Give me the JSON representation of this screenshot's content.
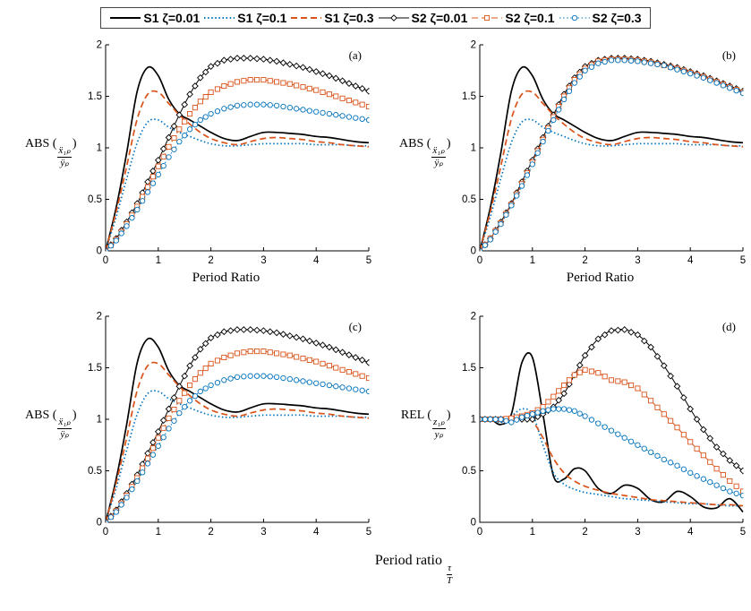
{
  "legend": {
    "items": [
      {
        "label": "S1 ζ=0.01",
        "color": "#000000",
        "dash": "solid",
        "marker": "none"
      },
      {
        "label": "S1 ζ=0.1",
        "color": "#0072BD",
        "dash": "dotted",
        "marker": "none"
      },
      {
        "label": "S1 ζ=0.3",
        "color": "#D95319",
        "dash": "dashed",
        "marker": "none"
      },
      {
        "label": "S2 ζ=0.01",
        "color": "#000000",
        "dash": "solid",
        "marker": "diamond"
      },
      {
        "label": "S2 ζ=0.1",
        "color": "#D95319",
        "dash": "dashed",
        "marker": "square"
      },
      {
        "label": "S2 ζ=0.3",
        "color": "#0072BD",
        "dash": "dotted",
        "marker": "circle"
      }
    ]
  },
  "labels": {
    "bottom_xlabel": "Period ratio",
    "tau": "τ",
    "T": "T"
  },
  "chart_data": [
    {
      "type": "line",
      "subplot": "(a)",
      "xlabel": "Period Ratio",
      "ylabel_prefix": "ABS (",
      "frac_num": "ẍ₁ₚ",
      "frac_den": "ÿₚ",
      "ylabel_suffix": ")",
      "xlim": [
        0,
        5
      ],
      "ylim": [
        0,
        2
      ],
      "xticks": [
        0,
        1,
        2,
        3,
        4,
        5
      ],
      "yticks": [
        0,
        0.5,
        1,
        1.5,
        2
      ],
      "x": [
        0,
        0.2,
        0.4,
        0.6,
        0.8,
        1,
        1.2,
        1.4,
        1.6,
        1.8,
        2,
        2.25,
        2.5,
        2.75,
        3,
        3.25,
        3.5,
        3.75,
        4,
        4.25,
        4.5,
        4.75,
        5
      ],
      "series": [
        {
          "name": "S1 ζ=0.01",
          "values": [
            0,
            0.42,
            0.95,
            1.55,
            1.78,
            1.7,
            1.47,
            1.33,
            1.27,
            1.21,
            1.15,
            1.09,
            1.07,
            1.11,
            1.15,
            1.15,
            1.14,
            1.13,
            1.11,
            1.1,
            1.08,
            1.06,
            1.05
          ]
        },
        {
          "name": "S1 ζ=0.1",
          "values": [
            0,
            0.33,
            0.7,
            1.05,
            1.25,
            1.27,
            1.2,
            1.15,
            1.11,
            1.07,
            1.04,
            1.02,
            1.02,
            1.03,
            1.04,
            1.04,
            1.04,
            1.04,
            1.03,
            1.03,
            1.03,
            1.02,
            1.02
          ]
        },
        {
          "name": "S1 ζ=0.3",
          "values": [
            0,
            0.38,
            0.82,
            1.28,
            1.52,
            1.54,
            1.43,
            1.32,
            1.23,
            1.15,
            1.09,
            1.05,
            1.03,
            1.06,
            1.09,
            1.1,
            1.09,
            1.08,
            1.06,
            1.05,
            1.03,
            1.02,
            1.01
          ]
        },
        {
          "name": "S2 ζ=0.01",
          "values": [
            0,
            0.12,
            0.28,
            0.46,
            0.67,
            0.88,
            1.1,
            1.32,
            1.52,
            1.68,
            1.79,
            1.85,
            1.87,
            1.87,
            1.86,
            1.84,
            1.81,
            1.78,
            1.74,
            1.7,
            1.65,
            1.6,
            1.55
          ]
        },
        {
          "name": "S2 ζ=0.1",
          "values": [
            0,
            0.11,
            0.26,
            0.43,
            0.62,
            0.82,
            1.01,
            1.18,
            1.33,
            1.45,
            1.54,
            1.6,
            1.64,
            1.66,
            1.66,
            1.64,
            1.62,
            1.59,
            1.56,
            1.52,
            1.48,
            1.44,
            1.4
          ]
        },
        {
          "name": "S2 ζ=0.3",
          "values": [
            0,
            0.1,
            0.24,
            0.4,
            0.57,
            0.74,
            0.91,
            1.06,
            1.18,
            1.27,
            1.33,
            1.38,
            1.41,
            1.42,
            1.42,
            1.41,
            1.39,
            1.37,
            1.35,
            1.33,
            1.31,
            1.29,
            1.27
          ]
        }
      ]
    },
    {
      "type": "line",
      "subplot": "(b)",
      "xlabel": "Period Ratio",
      "ylabel_prefix": "ABS (",
      "frac_num": "ẍ₁ₚ",
      "frac_den": "ÿₚ",
      "ylabel_suffix": ")",
      "xlim": [
        0,
        5
      ],
      "ylim": [
        0,
        2
      ],
      "xticks": [
        0,
        1,
        2,
        3,
        4,
        5
      ],
      "yticks": [
        0,
        0.5,
        1,
        1.5,
        2
      ],
      "x": [
        0,
        0.2,
        0.4,
        0.6,
        0.8,
        1,
        1.2,
        1.4,
        1.6,
        1.8,
        2,
        2.25,
        2.5,
        2.75,
        3,
        3.25,
        3.5,
        3.75,
        4,
        4.25,
        4.5,
        4.75,
        5
      ],
      "series": [
        {
          "name": "S1 ζ=0.01",
          "values": [
            0,
            0.42,
            0.95,
            1.55,
            1.78,
            1.7,
            1.47,
            1.33,
            1.27,
            1.21,
            1.15,
            1.09,
            1.07,
            1.11,
            1.15,
            1.15,
            1.14,
            1.13,
            1.11,
            1.1,
            1.08,
            1.06,
            1.05
          ]
        },
        {
          "name": "S1 ζ=0.1",
          "values": [
            0,
            0.33,
            0.7,
            1.05,
            1.25,
            1.27,
            1.2,
            1.15,
            1.11,
            1.07,
            1.04,
            1.02,
            1.02,
            1.03,
            1.04,
            1.04,
            1.04,
            1.04,
            1.03,
            1.03,
            1.03,
            1.02,
            1.02
          ]
        },
        {
          "name": "S1 ζ=0.3",
          "values": [
            0,
            0.38,
            0.82,
            1.28,
            1.52,
            1.54,
            1.43,
            1.32,
            1.23,
            1.15,
            1.09,
            1.05,
            1.03,
            1.06,
            1.09,
            1.1,
            1.09,
            1.08,
            1.06,
            1.05,
            1.03,
            1.02,
            1.01
          ]
        },
        {
          "name": "S2 ζ=0.01",
          "values": [
            0,
            0.12,
            0.28,
            0.46,
            0.67,
            0.88,
            1.1,
            1.32,
            1.52,
            1.68,
            1.79,
            1.85,
            1.87,
            1.87,
            1.86,
            1.84,
            1.81,
            1.78,
            1.74,
            1.7,
            1.65,
            1.6,
            1.55
          ]
        },
        {
          "name": "S2 ζ=0.1",
          "values": [
            0,
            0.12,
            0.27,
            0.45,
            0.65,
            0.86,
            1.08,
            1.3,
            1.5,
            1.66,
            1.77,
            1.84,
            1.86,
            1.86,
            1.85,
            1.83,
            1.8,
            1.77,
            1.73,
            1.69,
            1.64,
            1.59,
            1.54
          ]
        },
        {
          "name": "S2 ζ=0.3",
          "values": [
            0,
            0.11,
            0.26,
            0.44,
            0.63,
            0.84,
            1.06,
            1.27,
            1.47,
            1.63,
            1.75,
            1.82,
            1.85,
            1.85,
            1.84,
            1.82,
            1.8,
            1.76,
            1.72,
            1.68,
            1.63,
            1.58,
            1.53
          ]
        }
      ]
    },
    {
      "type": "line",
      "subplot": "(c)",
      "ylabel_prefix": "ABS (",
      "frac_num": "ẍ₁ₚ",
      "frac_den": "ÿₚ",
      "ylabel_suffix": ")",
      "xlim": [
        0,
        5
      ],
      "ylim": [
        0,
        2
      ],
      "xticks": [
        0,
        1,
        2,
        3,
        4,
        5
      ],
      "yticks": [
        0,
        0.5,
        1,
        1.5,
        2
      ],
      "x": [
        0,
        0.2,
        0.4,
        0.6,
        0.8,
        1,
        1.2,
        1.4,
        1.6,
        1.8,
        2,
        2.25,
        2.5,
        2.75,
        3,
        3.25,
        3.5,
        3.75,
        4,
        4.25,
        4.5,
        4.75,
        5
      ],
      "series": [
        {
          "name": "S1 ζ=0.01",
          "values": [
            0,
            0.42,
            0.95,
            1.55,
            1.78,
            1.7,
            1.47,
            1.33,
            1.27,
            1.21,
            1.15,
            1.09,
            1.07,
            1.11,
            1.15,
            1.15,
            1.14,
            1.13,
            1.11,
            1.1,
            1.08,
            1.06,
            1.05
          ]
        },
        {
          "name": "S1 ζ=0.1",
          "values": [
            0,
            0.33,
            0.7,
            1.05,
            1.25,
            1.27,
            1.2,
            1.15,
            1.11,
            1.07,
            1.04,
            1.02,
            1.02,
            1.03,
            1.04,
            1.04,
            1.04,
            1.04,
            1.03,
            1.03,
            1.03,
            1.02,
            1.02
          ]
        },
        {
          "name": "S1 ζ=0.3",
          "values": [
            0,
            0.38,
            0.82,
            1.28,
            1.52,
            1.54,
            1.43,
            1.32,
            1.23,
            1.15,
            1.09,
            1.05,
            1.03,
            1.06,
            1.09,
            1.1,
            1.09,
            1.08,
            1.06,
            1.05,
            1.03,
            1.02,
            1.01
          ]
        },
        {
          "name": "S2 ζ=0.01",
          "values": [
            0,
            0.12,
            0.28,
            0.46,
            0.67,
            0.88,
            1.1,
            1.32,
            1.52,
            1.68,
            1.79,
            1.85,
            1.87,
            1.87,
            1.86,
            1.84,
            1.81,
            1.78,
            1.74,
            1.7,
            1.65,
            1.6,
            1.55
          ]
        },
        {
          "name": "S2 ζ=0.1",
          "values": [
            0,
            0.11,
            0.26,
            0.43,
            0.62,
            0.82,
            1.01,
            1.18,
            1.33,
            1.45,
            1.54,
            1.6,
            1.64,
            1.66,
            1.66,
            1.64,
            1.62,
            1.59,
            1.56,
            1.52,
            1.48,
            1.44,
            1.4
          ]
        },
        {
          "name": "S2 ζ=0.3",
          "values": [
            0,
            0.1,
            0.24,
            0.4,
            0.57,
            0.74,
            0.91,
            1.06,
            1.18,
            1.27,
            1.33,
            1.38,
            1.41,
            1.42,
            1.42,
            1.41,
            1.39,
            1.37,
            1.35,
            1.33,
            1.31,
            1.29,
            1.27
          ]
        }
      ]
    },
    {
      "type": "line",
      "subplot": "(d)",
      "ylabel_prefix": "REL (",
      "frac_num": "z₁ₚ",
      "frac_den": "yₚ",
      "ylabel_suffix": ")",
      "xlim": [
        0,
        5
      ],
      "ylim": [
        0,
        2
      ],
      "xticks": [
        0,
        1,
        2,
        3,
        4,
        5
      ],
      "yticks": [
        0,
        0.5,
        1,
        1.5,
        2
      ],
      "x": [
        0,
        0.2,
        0.4,
        0.6,
        0.8,
        1,
        1.2,
        1.4,
        1.6,
        1.8,
        2,
        2.25,
        2.5,
        2.75,
        3,
        3.25,
        3.5,
        3.75,
        4,
        4.25,
        4.5,
        4.75,
        5
      ],
      "series": [
        {
          "name": "S1 ζ=0.01",
          "values": [
            1.0,
            1.0,
            0.95,
            1.05,
            1.55,
            1.6,
            1.05,
            0.45,
            0.42,
            0.52,
            0.5,
            0.33,
            0.28,
            0.36,
            0.33,
            0.22,
            0.2,
            0.3,
            0.25,
            0.15,
            0.14,
            0.23,
            0.1
          ]
        },
        {
          "name": "S1 ζ=0.1",
          "values": [
            1.0,
            1.0,
            0.97,
            1.03,
            1.1,
            1.05,
            0.75,
            0.48,
            0.37,
            0.32,
            0.29,
            0.27,
            0.25,
            0.23,
            0.22,
            0.21,
            0.2,
            0.19,
            0.18,
            0.18,
            0.17,
            0.16,
            0.16
          ]
        },
        {
          "name": "S1 ζ=0.3",
          "values": [
            1.0,
            1.0,
            0.99,
            1.0,
            1.02,
            0.98,
            0.82,
            0.62,
            0.48,
            0.4,
            0.35,
            0.31,
            0.28,
            0.26,
            0.24,
            0.22,
            0.21,
            0.2,
            0.19,
            0.18,
            0.17,
            0.17,
            0.16
          ]
        },
        {
          "name": "S2 ζ=0.01",
          "values": [
            1.0,
            1.0,
            1.0,
            1.0,
            1.0,
            1.0,
            1.05,
            1.12,
            1.25,
            1.43,
            1.62,
            1.78,
            1.86,
            1.87,
            1.82,
            1.7,
            1.52,
            1.32,
            1.1,
            0.9,
            0.73,
            0.6,
            0.5
          ]
        },
        {
          "name": "S2 ζ=0.1",
          "values": [
            1.0,
            1.0,
            1.0,
            1.01,
            1.03,
            1.06,
            1.12,
            1.22,
            1.33,
            1.43,
            1.48,
            1.45,
            1.38,
            1.36,
            1.3,
            1.18,
            1.05,
            0.92,
            0.78,
            0.65,
            0.52,
            0.4,
            0.3
          ]
        },
        {
          "name": "S2 ζ=0.3",
          "values": [
            1.0,
            1.0,
            1.0,
            0.97,
            1.02,
            1.05,
            1.08,
            1.1,
            1.1,
            1.08,
            1.03,
            0.96,
            0.89,
            0.82,
            0.75,
            0.68,
            0.61,
            0.55,
            0.48,
            0.42,
            0.36,
            0.3,
            0.26
          ]
        }
      ]
    }
  ]
}
